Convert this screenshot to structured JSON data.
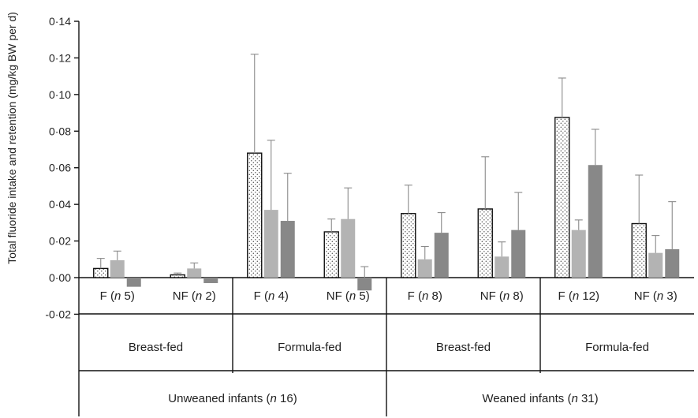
{
  "chart_data": {
    "type": "bar",
    "ylabel": "Total fluoride intake and retention (mg/kg BW per d)",
    "ylim": [
      -0.02,
      0.14
    ],
    "yticks": [
      "0·14",
      "0·12",
      "0·10",
      "0·08",
      "0·06",
      "0·04",
      "0·02",
      "0·00",
      "-0·02"
    ],
    "yticks_values": [
      0.14,
      0.12,
      0.1,
      0.08,
      0.06,
      0.04,
      0.02,
      0.0,
      -0.02
    ],
    "grid": false,
    "legend": "none",
    "categories": [
      {
        "pre": "F (",
        "n": "n",
        "post": " 5)"
      },
      {
        "pre": "NF (",
        "n": "n",
        "post": " 2)"
      },
      {
        "pre": "F (",
        "n": "n",
        "post": " 4)"
      },
      {
        "pre": "NF (",
        "n": "n",
        "post": " 5)"
      },
      {
        "pre": "F (",
        "n": "n",
        "post": " 8)"
      },
      {
        "pre": "NF (",
        "n": "n",
        "post": " 8)"
      },
      {
        "pre": "F (",
        "n": "n",
        "post": " 12)"
      },
      {
        "pre": "NF (",
        "n": "n",
        "post": " 3)"
      }
    ],
    "groups_level2": [
      "Breast-fed",
      "Formula-fed",
      "Breast-fed",
      "Formula-fed"
    ],
    "groups_level1": [
      {
        "pre": "Unweaned infants (",
        "n": "n",
        "post": " 16)"
      },
      {
        "pre": "Weaned infants (",
        "n": "n",
        "post": " 31)"
      }
    ],
    "series": [
      {
        "style": "dotted",
        "color": "#ffffff",
        "values": [
          0.005,
          0.0015,
          0.068,
          0.025,
          0.035,
          0.0375,
          0.0875,
          0.0295
        ],
        "errors": [
          0.0055,
          0.001,
          0.054,
          0.007,
          0.0155,
          0.0285,
          0.0215,
          0.0265
        ]
      },
      {
        "style": "light",
        "color": "#b3b3b3",
        "values": [
          0.0095,
          0.005,
          0.037,
          0.032,
          0.01,
          0.0115,
          0.026,
          0.0135
        ],
        "errors": [
          0.005,
          0.003,
          0.038,
          0.017,
          0.007,
          0.008,
          0.0055,
          0.0095
        ]
      },
      {
        "style": "dark",
        "color": "#888888",
        "values": [
          -0.005,
          -0.003,
          0.031,
          -0.007,
          0.0245,
          0.026,
          0.0615,
          0.0155
        ],
        "errors": [
          0.0,
          0.0,
          0.026,
          0.013,
          0.011,
          0.0205,
          0.0195,
          0.026
        ]
      }
    ]
  }
}
